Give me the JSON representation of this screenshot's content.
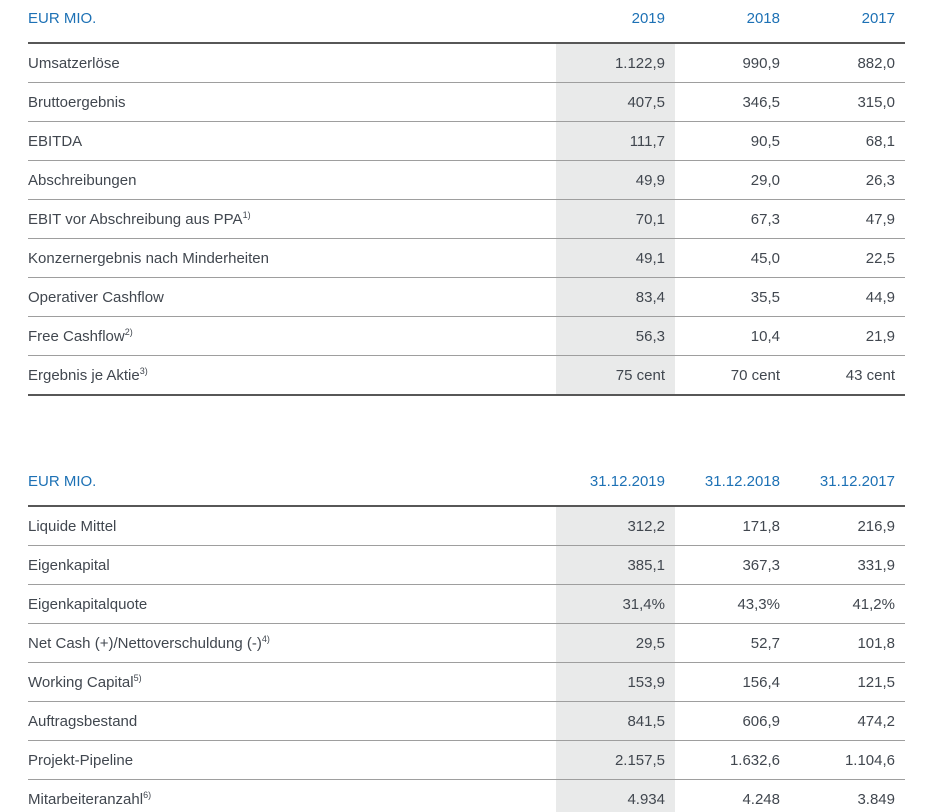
{
  "colors": {
    "accent": "#1d71b5",
    "text": "#41474f",
    "band": "#e9eaea",
    "rule_strong": "#575757",
    "rule_light": "#9e9e9e"
  },
  "tables": [
    {
      "title": "EUR MIO.",
      "headers": [
        "EUR MIO.",
        "2019",
        "2018",
        "2017"
      ],
      "rows": [
        {
          "label": "Umsatzerlöse",
          "values": [
            "1.122,9",
            "990,9",
            "882,0"
          ]
        },
        {
          "label": "Bruttoergebnis",
          "values": [
            "407,5",
            "346,5",
            "315,0"
          ]
        },
        {
          "label": "EBITDA",
          "values": [
            "111,7",
            "90,5",
            "68,1"
          ]
        },
        {
          "label": "Abschreibungen",
          "values": [
            "49,9",
            "29,0",
            "26,3"
          ]
        },
        {
          "label": "EBIT vor Abschreibung aus PPA",
          "note": "1)",
          "values": [
            "70,1",
            "67,3",
            "47,9"
          ]
        },
        {
          "label": "Konzernergebnis nach Minderheiten",
          "values": [
            "49,1",
            "45,0",
            "22,5"
          ]
        },
        {
          "label": "Operativer Cashflow",
          "values": [
            "83,4",
            "35,5",
            "44,9"
          ]
        },
        {
          "label": "Free Cashflow",
          "note": "2)",
          "values": [
            "56,3",
            "10,4",
            "21,9"
          ]
        },
        {
          "label": "Ergebnis je Aktie",
          "note": "3)",
          "values": [
            "75 cent",
            "70 cent",
            "43 cent"
          ]
        }
      ]
    },
    {
      "title": "EUR MIO.",
      "headers": [
        "EUR MIO.",
        "31.12.2019",
        "31.12.2018",
        "31.12.2017"
      ],
      "rows": [
        {
          "label": "Liquide Mittel",
          "values": [
            "312,2",
            "171,8",
            "216,9"
          ]
        },
        {
          "label": "Eigenkapital",
          "values": [
            "385,1",
            "367,3",
            "331,9"
          ]
        },
        {
          "label": "Eigenkapitalquote",
          "values": [
            "31,4%",
            "43,3%",
            "41,2%"
          ]
        },
        {
          "label": "Net Cash (+)/Nettoverschuldung (-)",
          "note": "4)",
          "values": [
            "29,5",
            "52,7",
            "101,8"
          ]
        },
        {
          "label": "Working Capital",
          "note": "5)",
          "values": [
            "153,9",
            "156,4",
            "121,5"
          ]
        },
        {
          "label": "Auftragsbestand",
          "values": [
            "841,5",
            "606,9",
            "474,2"
          ]
        },
        {
          "label": "Projekt-Pipeline",
          "values": [
            "2.157,5",
            "1.632,6",
            "1.104,6"
          ]
        },
        {
          "label": "Mitarbeiteranzahl",
          "note": "6)",
          "values": [
            "4.934",
            "4.248",
            "3.849"
          ]
        }
      ]
    }
  ]
}
